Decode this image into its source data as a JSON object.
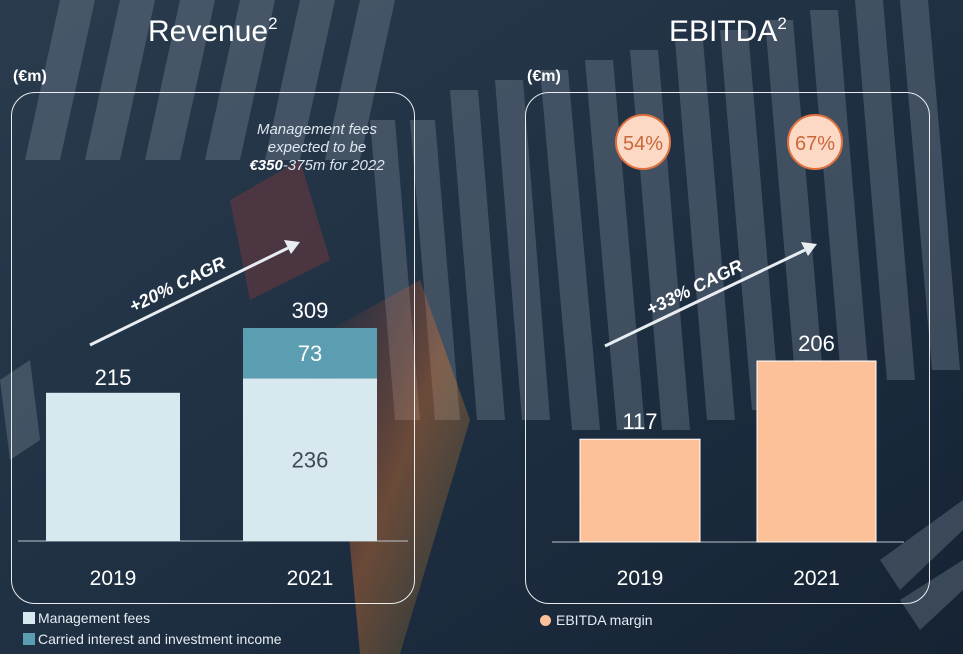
{
  "revenue_panel": {
    "title": "Revenue",
    "footnote": "2",
    "unit": "(€m)",
    "note_line1": "Management fees",
    "note_line2": "expected to be",
    "note_bold": "€350",
    "note_rest": "-375m for 2022",
    "cagr": "+20% CAGR"
  },
  "ebitda_panel": {
    "title": "EBITDA",
    "footnote": "2",
    "unit": "(€m)",
    "cagr": "+33% CAGR"
  },
  "legend": {
    "management_fees": "Management fees",
    "carried_interest": "Carried interest and investment income",
    "ebitda_margin": "EBITDA margin"
  },
  "colors": {
    "management_fees": "#d8e8ef",
    "carried_interest": "#5b9db1",
    "ebitda": "#fcc198",
    "margin_circle": "#fbd9c4",
    "margin_border": "#e0703e",
    "margin_text": "#c8683c"
  },
  "chart_data": [
    {
      "type": "bar",
      "title": "Revenue",
      "stacked": true,
      "categories": [
        "2019",
        "2021"
      ],
      "series": [
        {
          "name": "Management fees",
          "values": [
            215,
            236
          ]
        },
        {
          "name": "Carried interest and investment income",
          "values": [
            0,
            73
          ]
        }
      ],
      "totals": [
        215,
        309
      ],
      "total_labels": [
        "215",
        "309"
      ],
      "segment_labels": [
        "236",
        "73"
      ],
      "cagr_label": "+20% CAGR",
      "ylabel": "(€m)",
      "ylim": [
        0,
        309
      ]
    },
    {
      "type": "bar",
      "title": "EBITDA",
      "categories": [
        "2019",
        "2021"
      ],
      "values": [
        117,
        206
      ],
      "value_labels": [
        "117",
        "206"
      ],
      "ebitda_margin": [
        "54%",
        "67%"
      ],
      "cagr_label": "+33% CAGR",
      "ylabel": "(€m)",
      "ylim": [
        0,
        206
      ]
    }
  ]
}
